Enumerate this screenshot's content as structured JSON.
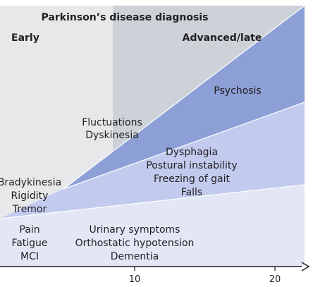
{
  "title": "Parkinson’s disease diagnosis",
  "phases": {
    "early": "Early",
    "advanced": "Advanced/late"
  },
  "bands": {
    "top": {
      "color": "#8c9fd6",
      "labels": [
        "Psychosis"
      ]
    },
    "middle_top": {
      "color": "#aab6e2",
      "labels": [
        "Fluctuations",
        "Dyskinesia"
      ]
    },
    "middle": {
      "color": "#c2cbee",
      "labels": [
        "Dysphagia",
        "Postural instability",
        "Freezing of gait",
        "Falls"
      ]
    },
    "lower": {
      "color": "#d2d9f2",
      "labels": [
        "Bradykinesia",
        "Rigidity",
        "Tremor"
      ]
    },
    "base": {
      "color": "#e2e6f5",
      "left_labels": [
        "Pain",
        "Fatigue",
        "MCI"
      ],
      "right_labels": [
        "Urinary symptoms",
        "Orthostatic hypotension",
        "Dementia"
      ]
    }
  },
  "background": {
    "early_color": "#e6e8ea",
    "advanced_color": "#ccd2d7"
  },
  "axis": {
    "ticks": [
      "10",
      "20"
    ]
  }
}
